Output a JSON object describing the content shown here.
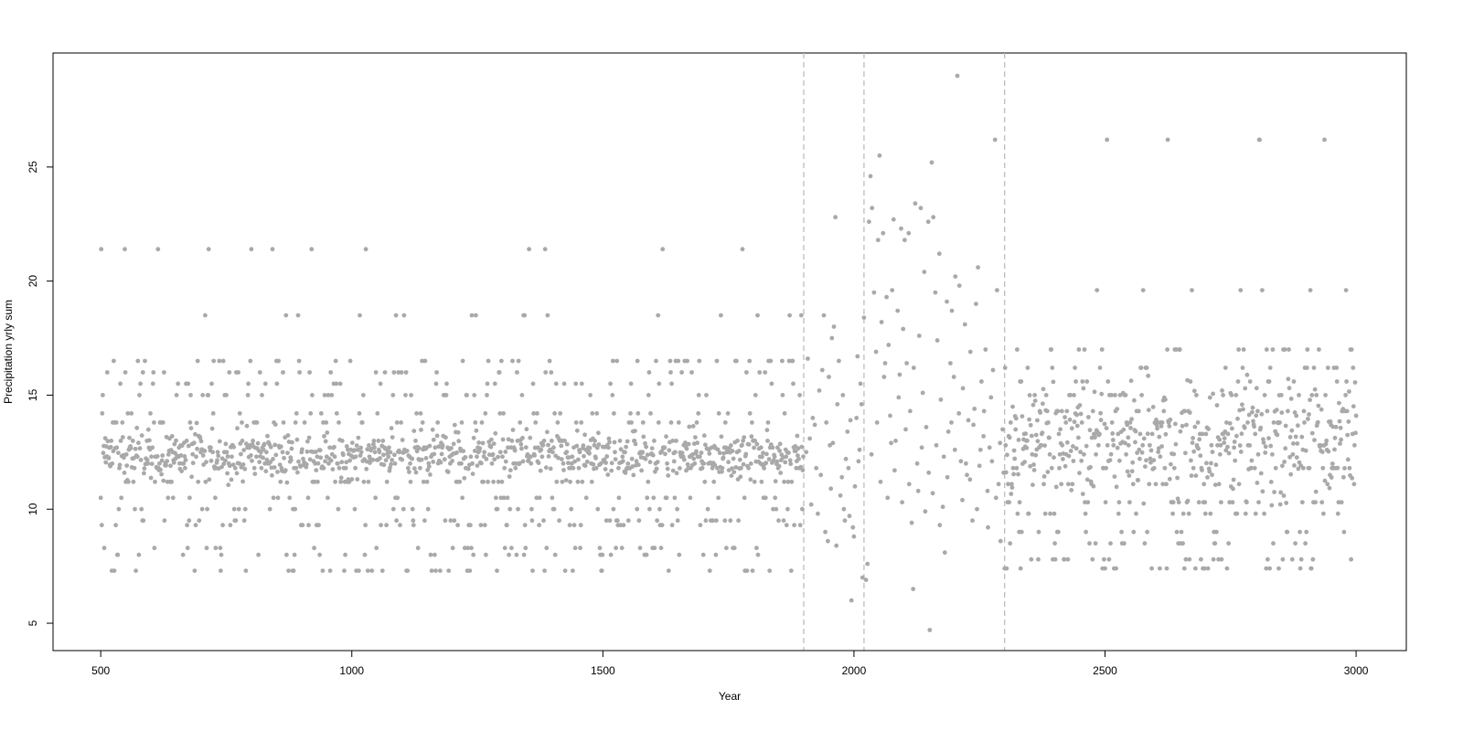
{
  "chart_data": {
    "type": "scatter",
    "title": "",
    "xlabel": "Year",
    "ylabel": "Precipitation yrly sum",
    "xlim": [
      405,
      3100
    ],
    "ylim": [
      3.8,
      30.0
    ],
    "xticks": [
      500,
      1000,
      1500,
      2000,
      2500,
      3000
    ],
    "yticks": [
      5,
      10,
      15,
      20,
      25
    ],
    "grid": false,
    "legend": "none",
    "point_color": "#a9a9a9",
    "reference_line_color": "#bdbdbd",
    "reference_lines_x": [
      1900,
      2020,
      2300
    ],
    "segments": [
      {
        "x_start": 500,
        "x_end": 1899,
        "levels": [
          7.3,
          8.0,
          8.3,
          9.3,
          9.5,
          10.0,
          10.5,
          11.2,
          11.8,
          12.0,
          12.3,
          12.5,
          12.7,
          13.0,
          13.8,
          14.2,
          15.0,
          15.5,
          16.0,
          16.5,
          18.5,
          21.4
        ],
        "core_center": 12.4,
        "core_spread": 0.5
      },
      {
        "x_start": 2300,
        "x_end": 3000,
        "levels": [
          7.4,
          7.8,
          8.5,
          9.0,
          9.8,
          10.3,
          11.1,
          11.8,
          12.4,
          12.8,
          13.3,
          13.8,
          14.3,
          15.0,
          15.6,
          16.2,
          17.0,
          19.6,
          26.2
        ],
        "core_center": 13.0,
        "core_spread": 1.2
      }
    ],
    "points": [
      [
        1905,
        12.5
      ],
      [
        1912,
        13.1
      ],
      [
        1918,
        14.0
      ],
      [
        1925,
        11.8
      ],
      [
        1931,
        15.2
      ],
      [
        1937,
        16.1
      ],
      [
        1943,
        9.0
      ],
      [
        1948,
        8.6
      ],
      [
        1952,
        12.8
      ],
      [
        1956,
        17.5
      ],
      [
        1960,
        18.0
      ],
      [
        1963,
        22.8
      ],
      [
        1967,
        14.6
      ],
      [
        1970,
        16.5
      ],
      [
        1973,
        10.6
      ],
      [
        1976,
        11.4
      ],
      [
        1980,
        10.0
      ],
      [
        1984,
        12.2
      ],
      [
        1987,
        13.4
      ],
      [
        1991,
        9.7
      ],
      [
        1995,
        6.0
      ],
      [
        1998,
        9.2
      ],
      [
        2002,
        11.0
      ],
      [
        2005,
        14.0
      ],
      [
        2009,
        12.1
      ],
      [
        2013,
        15.5
      ],
      [
        2017,
        7.0
      ],
      [
        2020,
        18.4
      ],
      [
        2024,
        6.9
      ],
      [
        2027,
        7.6
      ],
      [
        2030,
        22.6
      ],
      [
        2033,
        24.6
      ],
      [
        2036,
        23.2
      ],
      [
        2040,
        19.5
      ],
      [
        2044,
        16.9
      ],
      [
        2048,
        21.8
      ],
      [
        2051,
        25.5
      ],
      [
        2055,
        18.2
      ],
      [
        2058,
        22.1
      ],
      [
        2062,
        16.4
      ],
      [
        2065,
        19.3
      ],
      [
        2069,
        17.2
      ],
      [
        2072,
        14.1
      ],
      [
        2076,
        19.6
      ],
      [
        2079,
        22.7
      ],
      [
        2083,
        13.0
      ],
      [
        2087,
        18.7
      ],
      [
        2091,
        15.9
      ],
      [
        2094,
        22.3
      ],
      [
        2098,
        17.9
      ],
      [
        2101,
        21.8
      ],
      [
        2105,
        16.4
      ],
      [
        2109,
        22.1
      ],
      [
        2112,
        14.3
      ],
      [
        2115,
        9.4
      ],
      [
        2118,
        6.5
      ],
      [
        2122,
        23.4
      ],
      [
        2126,
        12.0
      ],
      [
        2130,
        17.6
      ],
      [
        2133,
        23.2
      ],
      [
        2137,
        15.1
      ],
      [
        2140,
        20.4
      ],
      [
        2144,
        13.6
      ],
      [
        2148,
        22.6
      ],
      [
        2151,
        4.7
      ],
      [
        2155,
        25.2
      ],
      [
        2158,
        22.8
      ],
      [
        2162,
        19.5
      ],
      [
        2166,
        17.4
      ],
      [
        2170,
        21.2
      ],
      [
        2173,
        14.8
      ],
      [
        2177,
        10.1
      ],
      [
        2181,
        8.1
      ],
      [
        2185,
        19.1
      ],
      [
        2188,
        13.4
      ],
      [
        2192,
        16.4
      ],
      [
        2195,
        18.7
      ],
      [
        2199,
        15.8
      ],
      [
        2202,
        20.2
      ],
      [
        2206,
        29.0
      ],
      [
        2210,
        19.8
      ],
      [
        2213,
        12.1
      ],
      [
        2217,
        15.3
      ],
      [
        2221,
        18.1
      ],
      [
        2225,
        11.5
      ],
      [
        2228,
        13.9
      ],
      [
        2232,
        16.9
      ],
      [
        2236,
        9.5
      ],
      [
        2240,
        14.4
      ],
      [
        2243,
        19.0
      ],
      [
        2247,
        20.6
      ],
      [
        2250,
        11.9
      ],
      [
        2254,
        15.6
      ],
      [
        2258,
        13.2
      ],
      [
        2262,
        17.0
      ],
      [
        2266,
        10.8
      ],
      [
        2270,
        12.7
      ],
      [
        2273,
        14.9
      ],
      [
        2277,
        16.1
      ],
      [
        2281,
        26.2
      ],
      [
        2285,
        19.6
      ],
      [
        2288,
        11.1
      ],
      [
        2292,
        8.6
      ],
      [
        2296,
        13.5
      ],
      [
        1908,
        16.6
      ],
      [
        1915,
        10.2
      ],
      [
        1922,
        13.7
      ],
      [
        1928,
        9.8
      ],
      [
        1934,
        11.5
      ],
      [
        1940,
        18.5
      ],
      [
        1945,
        13.8
      ],
      [
        1950,
        15.8
      ],
      [
        1954,
        10.9
      ],
      [
        1958,
        12.9
      ],
      [
        1965,
        8.4
      ],
      [
        1978,
        15.0
      ],
      [
        1982,
        9.5
      ],
      [
        1989,
        11.8
      ],
      [
        1993,
        13.9
      ],
      [
        2000,
        8.8
      ],
      [
        2007,
        16.7
      ],
      [
        2011,
        12.6
      ],
      [
        2015,
        14.6
      ],
      [
        2035,
        12.4
      ],
      [
        2046,
        13.8
      ],
      [
        2053,
        11.2
      ],
      [
        2060,
        15.8
      ],
      [
        2067,
        10.5
      ],
      [
        2074,
        12.9
      ],
      [
        2081,
        11.7
      ],
      [
        2089,
        14.9
      ],
      [
        2096,
        10.3
      ],
      [
        2103,
        13.5
      ],
      [
        2110,
        11.1
      ],
      [
        2119,
        16.2
      ],
      [
        2128,
        10.8
      ],
      [
        2135,
        12.7
      ],
      [
        2142,
        9.9
      ],
      [
        2149,
        11.6
      ],
      [
        2157,
        10.7
      ],
      [
        2164,
        12.8
      ],
      [
        2171,
        9.3
      ],
      [
        2179,
        12.3
      ],
      [
        2186,
        11.4
      ],
      [
        2194,
        13.8
      ],
      [
        2201,
        12.6
      ],
      [
        2209,
        14.2
      ],
      [
        2216,
        10.4
      ],
      [
        2223,
        12.0
      ],
      [
        2231,
        11.3
      ],
      [
        2238,
        13.7
      ],
      [
        2245,
        10.0
      ],
      [
        2252,
        12.6
      ],
      [
        2259,
        14.3
      ],
      [
        2267,
        9.2
      ],
      [
        2275,
        12.1
      ],
      [
        2283,
        10.5
      ],
      [
        2291,
        12.9
      ],
      [
        2298,
        11.6
      ]
    ]
  }
}
